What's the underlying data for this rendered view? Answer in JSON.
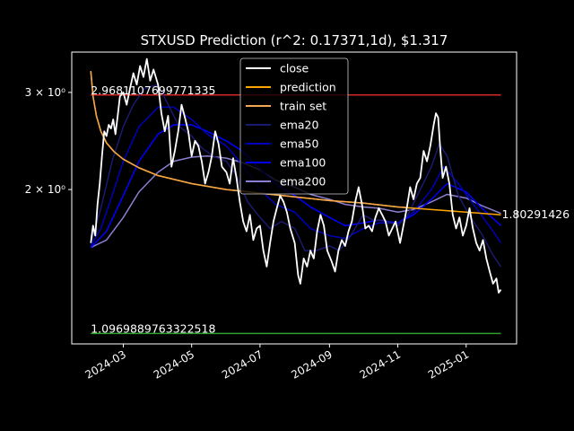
{
  "chart_data": {
    "type": "line",
    "title": "STXUSD Prediction (r^2: 0.17371,1d), $1.317",
    "xlabel": "",
    "ylabel": "",
    "y_scale": "log",
    "ylim": [
      1.05,
      3.55
    ],
    "xlim": [
      "2024-01-15",
      "2025-02-15"
    ],
    "grid": false,
    "legend_placement": "upper-center",
    "x_ticks": [
      "2024-03",
      "2024-05",
      "2024-07",
      "2024-09",
      "2024-11",
      "2025-01"
    ],
    "x_tick_dates": [
      "2024-03-01",
      "2024-05-01",
      "2024-07-01",
      "2024-09-01",
      "2024-11-01",
      "2025-01-01"
    ],
    "y_ticks": [
      {
        "value": 2,
        "label": "2 × 10⁰"
      },
      {
        "value": 3,
        "label": "3 × 10⁰"
      }
    ],
    "hlines": [
      {
        "name": "upper",
        "value": 2.9681107699771334,
        "label": "2.9681107699771335",
        "color": "#d62728"
      },
      {
        "name": "lower",
        "value": 1.0969889763322518,
        "label": "1.0969889763322518",
        "color": "#2ca02c"
      }
    ],
    "end_label": {
      "value": 1.80291426,
      "text": "1.80291426"
    },
    "series": [
      {
        "name": "close",
        "color": "#ffffff",
        "width": 1.8,
        "key": "close"
      },
      {
        "name": "prediction",
        "color": "#ffa500",
        "width": 1.5,
        "key": "prediction"
      },
      {
        "name": "train set",
        "color": "#f5a64a",
        "width": 1.5,
        "key": "train"
      },
      {
        "name": "ema20",
        "color": "#1a1a6e",
        "width": 1.5,
        "key": "ema20"
      },
      {
        "name": "ema50",
        "color": "#0000b8",
        "width": 1.5,
        "key": "ema50"
      },
      {
        "name": "ema100",
        "color": "#0000ff",
        "width": 1.5,
        "key": "ema100"
      },
      {
        "name": "ema200",
        "color": "#8a7fd0",
        "width": 1.5,
        "key": "ema200"
      }
    ],
    "close_points": [
      [
        "2024-02-01",
        1.6
      ],
      [
        "2024-02-03",
        1.72
      ],
      [
        "2024-02-05",
        1.65
      ],
      [
        "2024-02-07",
        1.88
      ],
      [
        "2024-02-09",
        2.05
      ],
      [
        "2024-02-11",
        2.3
      ],
      [
        "2024-02-13",
        2.55
      ],
      [
        "2024-02-15",
        2.5
      ],
      [
        "2024-02-17",
        2.62
      ],
      [
        "2024-02-19",
        2.58
      ],
      [
        "2024-02-21",
        2.68
      ],
      [
        "2024-02-23",
        2.52
      ],
      [
        "2024-02-25",
        2.72
      ],
      [
        "2024-02-27",
        2.95
      ],
      [
        "2024-03-01",
        3.0
      ],
      [
        "2024-03-04",
        2.85
      ],
      [
        "2024-03-07",
        3.05
      ],
      [
        "2024-03-10",
        3.25
      ],
      [
        "2024-03-13",
        3.1
      ],
      [
        "2024-03-16",
        3.35
      ],
      [
        "2024-03-19",
        3.2
      ],
      [
        "2024-03-22",
        3.45
      ],
      [
        "2024-03-25",
        3.15
      ],
      [
        "2024-03-28",
        3.3
      ],
      [
        "2024-04-01",
        3.1
      ],
      [
        "2024-04-04",
        2.75
      ],
      [
        "2024-04-07",
        2.55
      ],
      [
        "2024-04-10",
        2.72
      ],
      [
        "2024-04-13",
        2.2
      ],
      [
        "2024-04-16",
        2.35
      ],
      [
        "2024-04-19",
        2.55
      ],
      [
        "2024-04-22",
        2.85
      ],
      [
        "2024-04-25",
        2.7
      ],
      [
        "2024-04-28",
        2.55
      ],
      [
        "2024-05-01",
        2.3
      ],
      [
        "2024-05-04",
        2.45
      ],
      [
        "2024-05-07",
        2.4
      ],
      [
        "2024-05-10",
        2.25
      ],
      [
        "2024-05-13",
        2.05
      ],
      [
        "2024-05-16",
        2.15
      ],
      [
        "2024-05-19",
        2.3
      ],
      [
        "2024-05-22",
        2.55
      ],
      [
        "2024-05-25",
        2.42
      ],
      [
        "2024-05-28",
        2.2
      ],
      [
        "2024-06-01",
        2.15
      ],
      [
        "2024-06-04",
        2.05
      ],
      [
        "2024-06-07",
        2.28
      ],
      [
        "2024-06-10",
        2.1
      ],
      [
        "2024-06-13",
        1.9
      ],
      [
        "2024-06-16",
        1.75
      ],
      [
        "2024-06-19",
        1.68
      ],
      [
        "2024-06-22",
        1.8
      ],
      [
        "2024-06-25",
        1.62
      ],
      [
        "2024-06-28",
        1.7
      ],
      [
        "2024-07-01",
        1.72
      ],
      [
        "2024-07-04",
        1.55
      ],
      [
        "2024-07-07",
        1.45
      ],
      [
        "2024-07-10",
        1.6
      ],
      [
        "2024-07-13",
        1.75
      ],
      [
        "2024-07-16",
        1.85
      ],
      [
        "2024-07-19",
        1.95
      ],
      [
        "2024-07-22",
        1.9
      ],
      [
        "2024-07-25",
        1.82
      ],
      [
        "2024-07-28",
        1.7
      ],
      [
        "2024-08-01",
        1.6
      ],
      [
        "2024-08-04",
        1.4
      ],
      [
        "2024-08-06",
        1.35
      ],
      [
        "2024-08-09",
        1.5
      ],
      [
        "2024-08-12",
        1.45
      ],
      [
        "2024-08-15",
        1.55
      ],
      [
        "2024-08-18",
        1.5
      ],
      [
        "2024-08-21",
        1.68
      ],
      [
        "2024-08-24",
        1.8
      ],
      [
        "2024-08-27",
        1.72
      ],
      [
        "2024-08-30",
        1.55
      ],
      [
        "2024-09-03",
        1.48
      ],
      [
        "2024-09-06",
        1.42
      ],
      [
        "2024-09-09",
        1.55
      ],
      [
        "2024-09-12",
        1.62
      ],
      [
        "2024-09-15",
        1.58
      ],
      [
        "2024-09-18",
        1.68
      ],
      [
        "2024-09-21",
        1.75
      ],
      [
        "2024-09-24",
        1.9
      ],
      [
        "2024-09-27",
        2.02
      ],
      [
        "2024-09-30",
        1.88
      ],
      [
        "2024-10-03",
        1.7
      ],
      [
        "2024-10-06",
        1.72
      ],
      [
        "2024-10-09",
        1.68
      ],
      [
        "2024-10-12",
        1.78
      ],
      [
        "2024-10-15",
        1.85
      ],
      [
        "2024-10-18",
        1.8
      ],
      [
        "2024-10-21",
        1.75
      ],
      [
        "2024-10-24",
        1.65
      ],
      [
        "2024-10-27",
        1.7
      ],
      [
        "2024-10-30",
        1.75
      ],
      [
        "2024-11-03",
        1.6
      ],
      [
        "2024-11-06",
        1.72
      ],
      [
        "2024-11-09",
        1.85
      ],
      [
        "2024-11-12",
        2.02
      ],
      [
        "2024-11-15",
        1.92
      ],
      [
        "2024-11-18",
        2.05
      ],
      [
        "2024-11-21",
        2.1
      ],
      [
        "2024-11-24",
        2.35
      ],
      [
        "2024-11-27",
        2.25
      ],
      [
        "2024-11-30",
        2.4
      ],
      [
        "2024-12-03",
        2.62
      ],
      [
        "2024-12-05",
        2.75
      ],
      [
        "2024-12-07",
        2.7
      ],
      [
        "2024-12-09",
        2.35
      ],
      [
        "2024-12-11",
        2.1
      ],
      [
        "2024-12-14",
        2.2
      ],
      [
        "2024-12-17",
        2.05
      ],
      [
        "2024-12-20",
        1.8
      ],
      [
        "2024-12-23",
        1.7
      ],
      [
        "2024-12-26",
        1.78
      ],
      [
        "2024-12-29",
        1.65
      ],
      [
        "2025-01-01",
        1.72
      ],
      [
        "2025-01-04",
        1.85
      ],
      [
        "2025-01-07",
        1.7
      ],
      [
        "2025-01-10",
        1.6
      ],
      [
        "2025-01-13",
        1.55
      ],
      [
        "2025-01-16",
        1.62
      ],
      [
        "2025-01-19",
        1.5
      ],
      [
        "2025-01-22",
        1.42
      ],
      [
        "2025-01-25",
        1.35
      ],
      [
        "2025-01-28",
        1.38
      ],
      [
        "2025-01-30",
        1.3
      ],
      [
        "2025-02-01",
        1.317
      ]
    ],
    "prediction_points": [
      [
        "2024-02-01",
        3.28
      ],
      [
        "2024-02-03",
        2.95
      ],
      [
        "2024-02-06",
        2.72
      ],
      [
        "2024-02-10",
        2.55
      ],
      [
        "2024-02-15",
        2.43
      ],
      [
        "2024-02-22",
        2.34
      ],
      [
        "2024-03-01",
        2.27
      ],
      [
        "2024-03-15",
        2.19
      ],
      [
        "2024-04-01",
        2.12
      ],
      [
        "2024-05-01",
        2.05
      ],
      [
        "2024-06-01",
        2.0
      ],
      [
        "2024-07-01",
        1.97
      ],
      [
        "2024-08-01",
        1.94
      ],
      [
        "2024-09-01",
        1.91
      ],
      [
        "2024-10-01",
        1.89
      ],
      [
        "2024-11-01",
        1.86
      ],
      [
        "2024-12-01",
        1.84
      ],
      [
        "2025-01-01",
        1.82
      ],
      [
        "2025-02-01",
        1.8
      ]
    ],
    "train_points": [
      [
        "2024-02-01",
        3.28
      ],
      [
        "2024-02-03",
        2.95
      ],
      [
        "2024-02-06",
        2.72
      ],
      [
        "2024-02-10",
        2.55
      ],
      [
        "2024-02-15",
        2.43
      ],
      [
        "2024-02-22",
        2.34
      ],
      [
        "2024-03-01",
        2.27
      ],
      [
        "2024-03-15",
        2.19
      ],
      [
        "2024-04-01",
        2.12
      ],
      [
        "2024-05-01",
        2.05
      ],
      [
        "2024-06-01",
        2.0
      ],
      [
        "2024-07-01",
        1.97
      ],
      [
        "2024-08-01",
        1.94
      ],
      [
        "2024-09-01",
        1.91
      ],
      [
        "2024-10-01",
        1.89
      ],
      [
        "2024-11-01",
        1.86
      ],
      [
        "2024-11-10",
        1.855
      ]
    ],
    "ema20_points": [
      [
        "2024-02-01",
        1.6
      ],
      [
        "2024-02-10",
        1.85
      ],
      [
        "2024-02-20",
        2.25
      ],
      [
        "2024-03-01",
        2.6
      ],
      [
        "2024-03-10",
        2.85
      ],
      [
        "2024-03-20",
        3.05
      ],
      [
        "2024-04-01",
        3.1
      ],
      [
        "2024-04-10",
        2.85
      ],
      [
        "2024-04-20",
        2.6
      ],
      [
        "2024-05-01",
        2.5
      ],
      [
        "2024-05-10",
        2.38
      ],
      [
        "2024-05-20",
        2.3
      ],
      [
        "2024-06-01",
        2.25
      ],
      [
        "2024-06-10",
        2.12
      ],
      [
        "2024-06-20",
        1.9
      ],
      [
        "2024-07-01",
        1.78
      ],
      [
        "2024-07-10",
        1.7
      ],
      [
        "2024-07-20",
        1.75
      ],
      [
        "2024-08-01",
        1.7
      ],
      [
        "2024-08-10",
        1.55
      ],
      [
        "2024-08-20",
        1.55
      ],
      [
        "2024-09-01",
        1.58
      ],
      [
        "2024-09-10",
        1.55
      ],
      [
        "2024-09-20",
        1.65
      ],
      [
        "2024-10-01",
        1.8
      ],
      [
        "2024-10-10",
        1.76
      ],
      [
        "2024-10-20",
        1.76
      ],
      [
        "2024-11-01",
        1.72
      ],
      [
        "2024-11-10",
        1.8
      ],
      [
        "2024-11-20",
        1.98
      ],
      [
        "2024-12-01",
        2.2
      ],
      [
        "2024-12-08",
        2.42
      ],
      [
        "2024-12-15",
        2.3
      ],
      [
        "2024-12-25",
        1.95
      ],
      [
        "2025-01-05",
        1.78
      ],
      [
        "2025-01-15",
        1.66
      ],
      [
        "2025-01-25",
        1.52
      ],
      [
        "2025-02-01",
        1.45
      ]
    ],
    "ema50_points": [
      [
        "2024-02-01",
        1.58
      ],
      [
        "2024-02-10",
        1.7
      ],
      [
        "2024-02-20",
        1.95
      ],
      [
        "2024-03-01",
        2.25
      ],
      [
        "2024-03-15",
        2.6
      ],
      [
        "2024-04-01",
        2.82
      ],
      [
        "2024-04-15",
        2.82
      ],
      [
        "2024-05-01",
        2.68
      ],
      [
        "2024-05-15",
        2.52
      ],
      [
        "2024-06-01",
        2.4
      ],
      [
        "2024-06-15",
        2.22
      ],
      [
        "2024-07-01",
        2.0
      ],
      [
        "2024-07-15",
        1.88
      ],
      [
        "2024-08-01",
        1.82
      ],
      [
        "2024-08-15",
        1.7
      ],
      [
        "2024-09-01",
        1.65
      ],
      [
        "2024-09-15",
        1.63
      ],
      [
        "2024-10-01",
        1.7
      ],
      [
        "2024-10-15",
        1.74
      ],
      [
        "2024-11-01",
        1.74
      ],
      [
        "2024-11-15",
        1.82
      ],
      [
        "2024-12-01",
        2.0
      ],
      [
        "2024-12-12",
        2.2
      ],
      [
        "2024-12-25",
        2.05
      ],
      [
        "2025-01-10",
        1.85
      ],
      [
        "2025-01-25",
        1.68
      ],
      [
        "2025-02-01",
        1.6
      ]
    ],
    "ema100_points": [
      [
        "2024-02-01",
        1.57
      ],
      [
        "2024-02-15",
        1.68
      ],
      [
        "2024-03-01",
        1.95
      ],
      [
        "2024-03-15",
        2.25
      ],
      [
        "2024-04-01",
        2.52
      ],
      [
        "2024-04-15",
        2.62
      ],
      [
        "2024-05-01",
        2.62
      ],
      [
        "2024-05-15",
        2.55
      ],
      [
        "2024-06-01",
        2.45
      ],
      [
        "2024-06-15",
        2.35
      ],
      [
        "2024-07-01",
        2.18
      ],
      [
        "2024-07-15",
        2.05
      ],
      [
        "2024-08-01",
        1.95
      ],
      [
        "2024-08-15",
        1.86
      ],
      [
        "2024-09-01",
        1.78
      ],
      [
        "2024-09-15",
        1.72
      ],
      [
        "2024-10-01",
        1.74
      ],
      [
        "2024-10-15",
        1.76
      ],
      [
        "2024-11-01",
        1.74
      ],
      [
        "2024-11-15",
        1.8
      ],
      [
        "2024-12-01",
        1.92
      ],
      [
        "2024-12-15",
        2.05
      ],
      [
        "2025-01-01",
        1.98
      ],
      [
        "2025-01-15",
        1.85
      ],
      [
        "2025-02-01",
        1.72
      ]
    ],
    "ema200_points": [
      [
        "2024-02-01",
        1.57
      ],
      [
        "2024-02-15",
        1.62
      ],
      [
        "2024-03-01",
        1.78
      ],
      [
        "2024-03-15",
        1.98
      ],
      [
        "2024-04-01",
        2.15
      ],
      [
        "2024-04-15",
        2.25
      ],
      [
        "2024-05-01",
        2.29
      ],
      [
        "2024-05-15",
        2.3
      ],
      [
        "2024-06-01",
        2.28
      ],
      [
        "2024-06-15",
        2.24
      ],
      [
        "2024-07-01",
        2.17
      ],
      [
        "2024-07-15",
        2.08
      ],
      [
        "2024-08-01",
        2.02
      ],
      [
        "2024-08-15",
        1.96
      ],
      [
        "2024-09-01",
        1.92
      ],
      [
        "2024-09-15",
        1.88
      ],
      [
        "2024-10-01",
        1.86
      ],
      [
        "2024-10-15",
        1.85
      ],
      [
        "2024-11-01",
        1.82
      ],
      [
        "2024-11-15",
        1.84
      ],
      [
        "2024-12-01",
        1.9
      ],
      [
        "2024-12-15",
        1.96
      ],
      [
        "2025-01-01",
        1.93
      ],
      [
        "2025-01-15",
        1.87
      ],
      [
        "2025-02-01",
        1.81
      ]
    ]
  }
}
